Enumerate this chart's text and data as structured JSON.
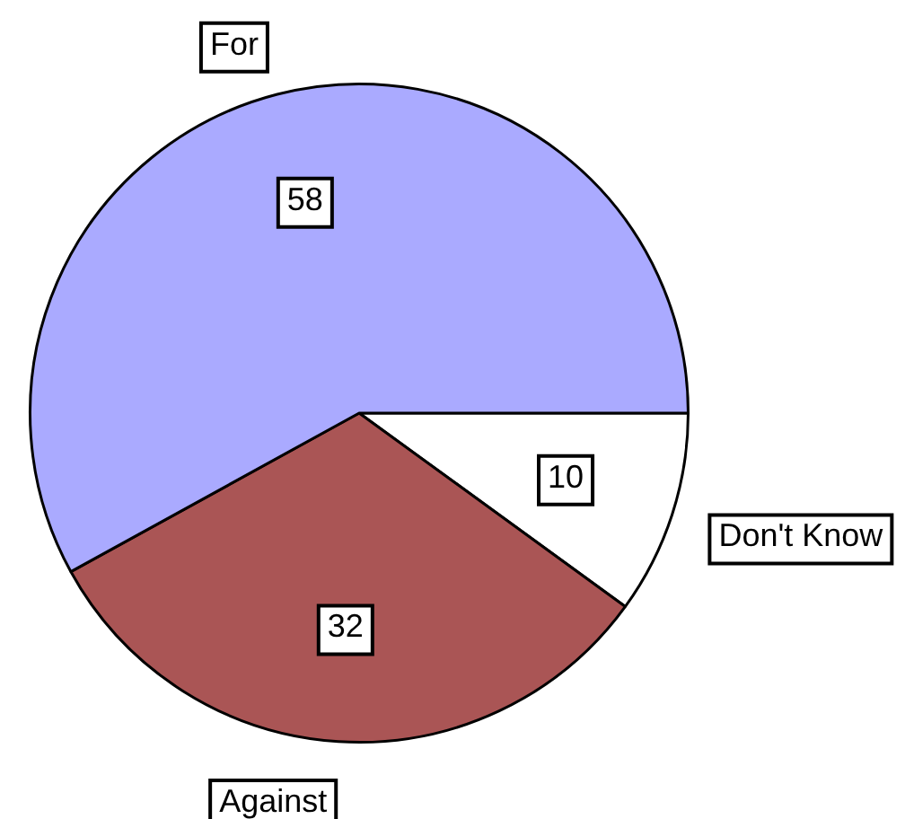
{
  "chart_data": {
    "type": "pie",
    "categories": [
      "For",
      "Against",
      "Don't Know"
    ],
    "values": [
      58,
      32,
      10
    ],
    "colors": [
      "#aaaaff",
      "#aa5555",
      "#ffffff"
    ],
    "data_labels": true
  }
}
